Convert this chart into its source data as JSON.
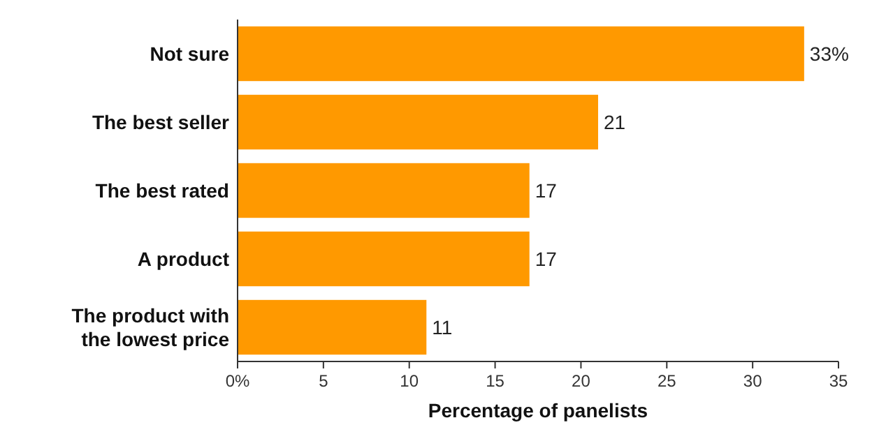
{
  "chart_data": {
    "type": "bar",
    "orientation": "horizontal",
    "xlabel": "Percentage of panelists",
    "categories": [
      "Not sure",
      "The best seller",
      "The best rated",
      "A product",
      "The product with the lowest price"
    ],
    "values": [
      33,
      21,
      17,
      17,
      11
    ],
    "color": "#ff9900",
    "value_labels": [
      "33%",
      "21",
      "17",
      "17",
      "11"
    ],
    "xlim": [
      0,
      35
    ],
    "xticks": [
      {
        "value": 0,
        "label": "0%"
      },
      5,
      10,
      15,
      20,
      25,
      30,
      35
    ],
    "grid": false
  }
}
